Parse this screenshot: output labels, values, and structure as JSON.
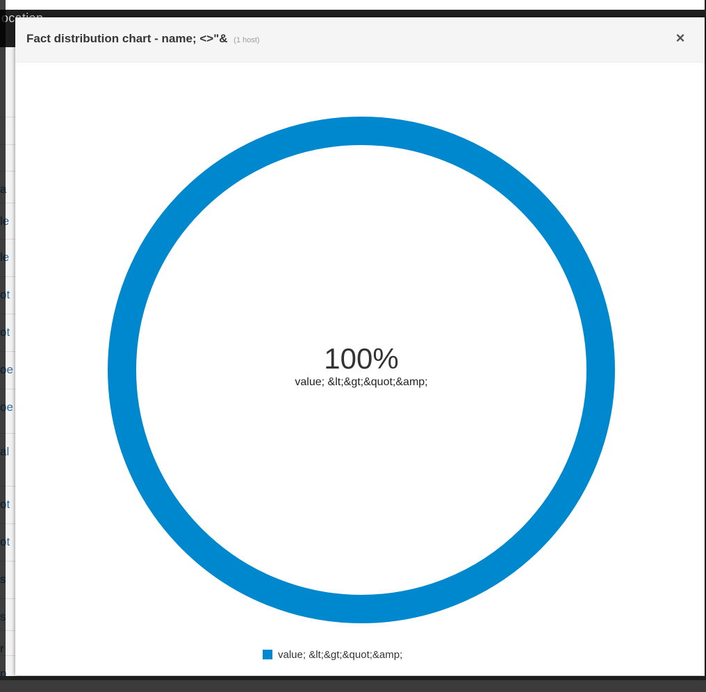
{
  "background": {
    "header_label": "ocation",
    "rows": [
      "a",
      "le",
      "le",
      "ot",
      "ot",
      "oe",
      "oe",
      "al",
      "ot",
      "ot",
      "s",
      "s",
      "r",
      "p"
    ]
  },
  "modal": {
    "title": "Fact distribution chart - name; <>\"&",
    "subtitle": "(1 host)",
    "close_icon": "×"
  },
  "chart_data": {
    "type": "pie",
    "style": "donut",
    "slices": [
      {
        "label": "value; &lt;&gt;&quot;&amp;",
        "value": 100,
        "color": "#0088ce"
      }
    ],
    "center_value": "100%",
    "center_label": "value; &lt;&gt;&quot;&amp;",
    "legend": [
      "value; &lt;&gt;&quot;&amp;"
    ],
    "legend_position": "bottom-center"
  }
}
